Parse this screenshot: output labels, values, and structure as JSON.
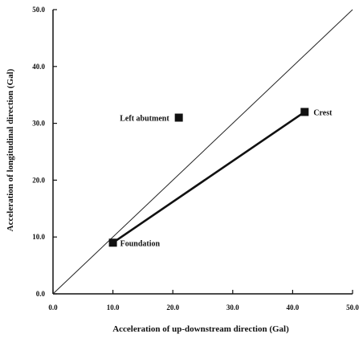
{
  "chart_data": {
    "type": "scatter",
    "title": "",
    "xlabel": "Acceleration of up-downstream direction (Gal)",
    "ylabel": "Acceleration of longitudinal direction (Gal)",
    "xlim": [
      0,
      50
    ],
    "ylim": [
      0,
      50
    ],
    "x_ticks": [
      0,
      10,
      20,
      30,
      40,
      50
    ],
    "y_ticks": [
      0,
      10,
      20,
      30,
      40,
      50
    ],
    "x_tick_labels": [
      "0.0",
      "10.0",
      "20.0",
      "30.0",
      "40.0",
      "50.0"
    ],
    "y_tick_labels": [
      "0.0",
      "10.0",
      "20.0",
      "30.0",
      "40.0",
      "50.0"
    ],
    "grid": false,
    "points": [
      {
        "label": "Foundation",
        "x": 10,
        "y": 9
      },
      {
        "label": "Left abutment",
        "x": 21,
        "y": 31
      },
      {
        "label": "Crest",
        "x": 42,
        "y": 32
      }
    ],
    "connector": {
      "from": "Foundation",
      "to": "Crest"
    },
    "reference_line": {
      "from": [
        0,
        0
      ],
      "to": [
        50,
        50
      ]
    },
    "colors": {
      "ink": "#111111",
      "line": "#222222"
    }
  }
}
